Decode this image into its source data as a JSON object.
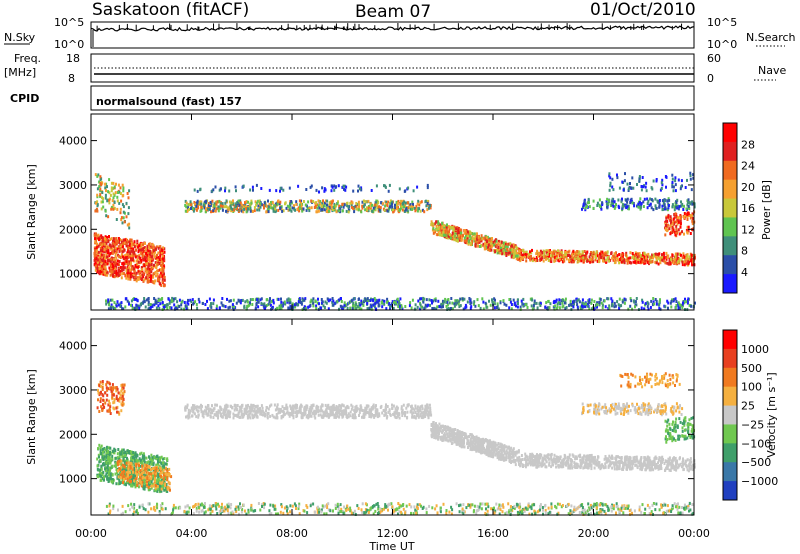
{
  "header": {
    "station": "Saskatoon (fitACF)",
    "beam": "Beam 07",
    "date": "01/Oct/2010"
  },
  "strip_labels": {
    "nsky": "N.Sky",
    "nsearch": "N.Search",
    "freq": "Freq.",
    "freq_unit": "[MHz]",
    "nave": "Nave",
    "cpid": "CPID",
    "cpid_value": "normalsound (fast) 157"
  },
  "strip_ticks": {
    "noise_left": [
      "10^5",
      "10^0"
    ],
    "noise_right": [
      "10^5",
      "10^0"
    ],
    "freq_left": [
      "18",
      "8"
    ],
    "freq_right": [
      "60",
      "0"
    ]
  },
  "chart_data": [
    {
      "type": "heatmap",
      "panel": "power",
      "ylabel": "Slant Range [km]",
      "xlabel": "",
      "xlim": [
        "00:00",
        "24:00"
      ],
      "ylim": [
        180,
        4600
      ],
      "yticks": [
        "1000",
        "2000",
        "3000",
        "4000"
      ],
      "colorbar_label": "Power [dB]",
      "colorbar_ticks": [
        "4",
        "8",
        "12",
        "16",
        "20",
        "24",
        "28"
      ],
      "colorbar_colors": [
        "#1a1aff",
        "#2b4fa8",
        "#3f8f7a",
        "#5fc450",
        "#c8c83a",
        "#f5a030",
        "#f06a20",
        "#e02020",
        "#ff0000"
      ]
    },
    {
      "type": "heatmap",
      "panel": "velocity",
      "ylabel": "Slant Range [km]",
      "xlabel": "Time UT",
      "xlim": [
        "00:00",
        "24:00"
      ],
      "ylim": [
        180,
        4600
      ],
      "yticks": [
        "1000",
        "2000",
        "3000",
        "4000"
      ],
      "xticks": [
        "00:00",
        "04:00",
        "08:00",
        "12:00",
        "16:00",
        "20:00",
        "00:00"
      ],
      "colorbar_label": "Velocity [m s⁻¹]",
      "colorbar_ticks": [
        "1000",
        "500",
        "100",
        "25",
        "−25",
        "−100",
        "−500",
        "−1000"
      ],
      "colorbar_colors": [
        "#2040c0",
        "#3a78a8",
        "#3f9f6a",
        "#70c850",
        "#c8c8c8",
        "#f5b040",
        "#f07a20",
        "#e84020",
        "#ff0000"
      ]
    }
  ]
}
